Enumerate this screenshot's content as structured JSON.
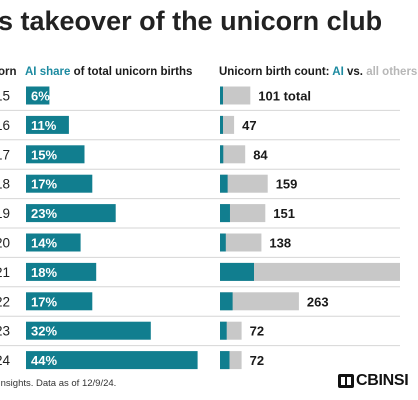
{
  "title": "s takeover of the unicorn club",
  "headers": {
    "year": "orn",
    "share_ai": "AI share",
    "share_rest": " of total unicorn births",
    "count_prefix": "Unicorn birth count: ",
    "count_ai": "AI",
    "count_vs": " vs. ",
    "count_others": "all others"
  },
  "footer": " Insights. Data as of 12/9/24.",
  "logo": "CBINSI",
  "colors": {
    "ai": "#117e8f",
    "others": "#c8c8c8",
    "accent_text": "#1c8aa0"
  },
  "chart_data": {
    "type": "bar",
    "categories": [
      "15",
      "16",
      "17",
      "18",
      "19",
      "20",
      "21",
      "22",
      "23",
      "24"
    ],
    "series": [
      {
        "name": "AI share of total unicorn births",
        "values": [
          6,
          11,
          15,
          17,
          23,
          14,
          18,
          17,
          32,
          44
        ],
        "labels": [
          "6%",
          "11%",
          "15%",
          "17%",
          "23%",
          "14%",
          "18%",
          "17%",
          "32%",
          "44%"
        ]
      },
      {
        "name": "Unicorn birth count: AI vs. all others",
        "values": [
          101,
          47,
          84,
          159,
          151,
          138,
          null,
          263,
          72,
          72
        ],
        "labels": [
          "101 total",
          "47",
          "84",
          "159",
          "151",
          "138",
          "",
          "263",
          "72",
          "72"
        ]
      }
    ]
  }
}
